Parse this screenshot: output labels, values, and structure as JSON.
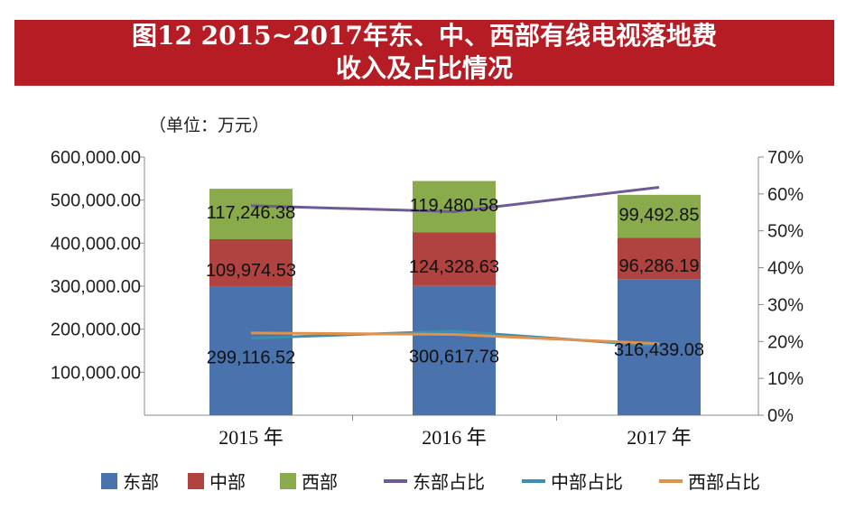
{
  "chart_data": {
    "type": "bar",
    "stacked": true,
    "title": "图12 2015~2017年东、中、西部有线电视落地费",
    "title_line2": "收入及占比情况",
    "unit_label": "（单位：万元）",
    "categories": [
      "2015 年",
      "2016 年",
      "2017 年"
    ],
    "ylim": [
      0,
      600000
    ],
    "y_ticks": [
      "100,000.00",
      "200,000.00",
      "300,000.00",
      "400,000.00",
      "500,000.00",
      "600,000.00"
    ],
    "y2lim": [
      0,
      0.7
    ],
    "y2_ticks": [
      "0%",
      "10%",
      "20%",
      "30%",
      "40%",
      "50%",
      "60%",
      "70%"
    ],
    "grid": false,
    "legend": "bottom",
    "series": [
      {
        "name": "东部",
        "type": "bar",
        "color": "#4a73ad",
        "values": [
          299116.52,
          300617.78,
          316439.08
        ],
        "labels": [
          "299,116.52",
          "300,617.78",
          "316,439.08"
        ]
      },
      {
        "name": "中部",
        "type": "bar",
        "color": "#b0433f",
        "values": [
          109974.53,
          124328.63,
          96286.19
        ],
        "labels": [
          "109,974.53",
          "124,328.63",
          "96,286.19"
        ]
      },
      {
        "name": "西部",
        "type": "bar",
        "color": "#8aab4b",
        "values": [
          117246.38,
          119480.58,
          99492.85
        ],
        "labels": [
          "117,246.38",
          "119,480.58",
          "99,492.85"
        ]
      },
      {
        "name": "东部占比",
        "type": "line",
        "axis": "right",
        "color": "#6c5b95",
        "values": [
          0.568,
          0.552,
          0.618
        ]
      },
      {
        "name": "中部占比",
        "type": "line",
        "axis": "right",
        "color": "#3c8fb0",
        "values": [
          0.209,
          0.228,
          0.188
        ]
      },
      {
        "name": "西部占比",
        "type": "line",
        "axis": "right",
        "color": "#e0914a",
        "values": [
          0.223,
          0.219,
          0.194
        ]
      }
    ]
  }
}
